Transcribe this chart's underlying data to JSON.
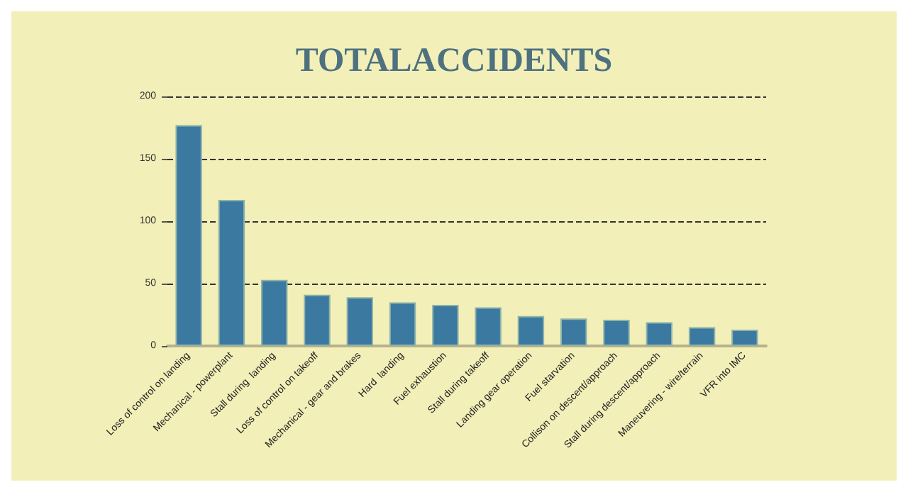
{
  "chart_data": {
    "type": "bar",
    "title": "TOTALACCIDENTS",
    "categories": [
      "Loss of control on landing",
      "Mechanical - powerplant",
      "Stall during  landing",
      "Loss of control on takeoff",
      "Mechanical - gear and brakes",
      "Hard  landing",
      "Fuel exhaustion",
      "Stall during takeoff",
      "Landing gear operation",
      "Fuel starvation",
      "Collison on descent/approach",
      "Stall during descent/approach",
      "Maneuvering - wire/terrain",
      "VFR into IMC"
    ],
    "values": [
      177,
      117,
      53,
      41,
      39,
      35,
      33,
      31,
      24,
      22,
      21,
      19,
      15,
      13
    ],
    "color": "#3b79a1",
    "ylim": [
      0,
      200
    ],
    "yticks": [
      0,
      50,
      100,
      150,
      200
    ],
    "grid": "y"
  }
}
